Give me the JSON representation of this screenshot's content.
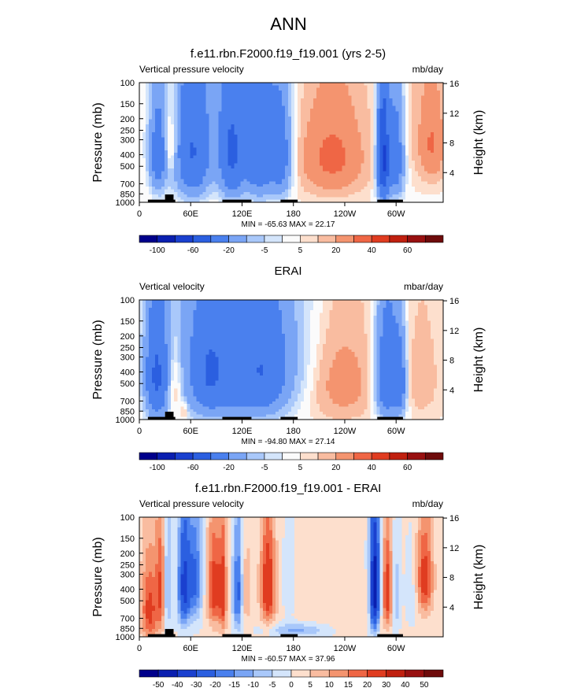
{
  "page_title": "ANN",
  "pressure_ticks": [
    {
      "p": 100,
      "label": "100"
    },
    {
      "p": 150,
      "label": "150"
    },
    {
      "p": 200,
      "label": "200"
    },
    {
      "p": 250,
      "label": "250"
    },
    {
      "p": 300,
      "label": "300"
    },
    {
      "p": 400,
      "label": "400"
    },
    {
      "p": 500,
      "label": "500"
    },
    {
      "p": 700,
      "label": "700"
    },
    {
      "p": 850,
      "label": "850"
    },
    {
      "p": 1000,
      "label": "1000"
    }
  ],
  "height_ticks": [
    {
      "km": 4,
      "label": "4"
    },
    {
      "km": 8,
      "label": "8"
    },
    {
      "km": 12,
      "label": "12"
    },
    {
      "km": 16,
      "label": "16"
    }
  ],
  "lon_ticks": [
    {
      "lon": 0,
      "label": "0"
    },
    {
      "lon": 60,
      "label": "60E"
    },
    {
      "lon": 120,
      "label": "120E"
    },
    {
      "lon": 180,
      "label": "180"
    },
    {
      "lon": 240,
      "label": "120W"
    },
    {
      "lon": 300,
      "label": "60W"
    }
  ],
  "y_label": "Pressure (mb)",
  "y2_label": "Height (km)",
  "topo": [
    {
      "lon0": 10,
      "lon1": 42,
      "pTop": 950
    },
    {
      "lon0": 30,
      "lon1": 40,
      "pTop": 860
    },
    {
      "lon0": 97,
      "lon1": 131,
      "pTop": 950
    },
    {
      "lon0": 165,
      "lon1": 185,
      "pTop": 950
    },
    {
      "lon0": 278,
      "lon1": 308,
      "pTop": 950
    }
  ],
  "chart_data": [
    {
      "type": "contour",
      "id": "p1",
      "title": "f.e11.rbn.F2000.f19_f19.001 (yrs 2-5)",
      "left_label": "Vertical pressure velocity",
      "right_label": "mb/day",
      "min_max": "MIN = -65.63  MAX =  22.17",
      "xlim": [
        0,
        355
      ],
      "ylim": [
        1000,
        100
      ],
      "xlabel": "",
      "ylabel": "Pressure (mb)",
      "y2label": "Height (km)",
      "base": 1.5,
      "features": [
        {
          "lon": 22,
          "p": 420,
          "sx": 7,
          "sp": 260,
          "a": -30
        },
        {
          "lon": 37,
          "p": 330,
          "sx": 5,
          "sp": 160,
          "a": 14
        },
        {
          "lon": 62,
          "p": 400,
          "sx": 14,
          "sp": 330,
          "a": -36
        },
        {
          "lon": 108,
          "p": 400,
          "sx": 10,
          "sp": 330,
          "a": -38
        },
        {
          "lon": 140,
          "p": 380,
          "sx": 12,
          "sp": 330,
          "a": -36
        },
        {
          "lon": 166,
          "p": 420,
          "sx": 9,
          "sp": 300,
          "a": -28
        },
        {
          "lon": 90,
          "p": 250,
          "sx": 50,
          "sp": 300,
          "a": -8
        },
        {
          "lon": 225,
          "p": 420,
          "sx": 26,
          "sp": 260,
          "a": 22
        },
        {
          "lon": 285,
          "p": 440,
          "sx": 5,
          "sp": 330,
          "a": -65
        },
        {
          "lon": 300,
          "p": 420,
          "sx": 7,
          "sp": 300,
          "a": -35
        },
        {
          "lon": 342,
          "p": 330,
          "sx": 10,
          "sp": 200,
          "a": 18
        },
        {
          "lon": 315,
          "p": 250,
          "sx": 20,
          "sp": 260,
          "a": 4
        }
      ],
      "levels": [
        -100,
        -80,
        -60,
        -40,
        -20,
        -10,
        -5,
        -2,
        2,
        5,
        10,
        20,
        30,
        40,
        50,
        60
      ],
      "colors": [
        "#00008b",
        "#0a1fb0",
        "#1a40cf",
        "#2b5fe0",
        "#4a80ee",
        "#7aa5f5",
        "#a9c8fa",
        "#d4e5fb",
        "#fbfbfb",
        "#fddfcd",
        "#f9bca0",
        "#f4946f",
        "#ef6645",
        "#e03c20",
        "#c0200f",
        "#981010",
        "#6e0b0b"
      ],
      "colorbar_labels": [
        {
          "idx": 1,
          "label": "-100"
        },
        {
          "idx": 3,
          "label": "-60"
        },
        {
          "idx": 5,
          "label": "-20"
        },
        {
          "idx": 7,
          "label": "-5"
        },
        {
          "idx": 9,
          "label": "5"
        },
        {
          "idx": 11,
          "label": "20"
        },
        {
          "idx": 13,
          "label": "40"
        },
        {
          "idx": 15,
          "label": "60"
        }
      ]
    },
    {
      "type": "contour",
      "id": "p2",
      "title": "ERAI",
      "left_label": "Vertical velocity",
      "right_label": "mbar/day",
      "min_max": "MIN = -94.80  MAX =  27.14",
      "xlim": [
        0,
        355
      ],
      "ylim": [
        1000,
        100
      ],
      "xlabel": "",
      "ylabel": "Pressure (mb)",
      "y2label": "Height (km)",
      "base": 1.5,
      "features": [
        {
          "lon": 20,
          "p": 450,
          "sx": 9,
          "sp": 330,
          "a": -40
        },
        {
          "lon": 42,
          "p": 500,
          "sx": 6,
          "sp": 260,
          "a": 14
        },
        {
          "lon": 110,
          "p": 400,
          "sx": 45,
          "sp": 380,
          "a": -30
        },
        {
          "lon": 80,
          "p": 450,
          "sx": 10,
          "sp": 260,
          "a": -14
        },
        {
          "lon": 150,
          "p": 450,
          "sx": 14,
          "sp": 260,
          "a": -12
        },
        {
          "lon": 125,
          "p": 220,
          "sx": 60,
          "sp": 350,
          "a": -10
        },
        {
          "lon": 235,
          "p": 480,
          "sx": 28,
          "sp": 320,
          "a": 14
        },
        {
          "lon": 290,
          "p": 450,
          "sx": 10,
          "sp": 330,
          "a": -40
        },
        {
          "lon": 305,
          "p": 500,
          "sx": 5,
          "sp": 260,
          "a": -26
        },
        {
          "lon": 330,
          "p": 450,
          "sx": 14,
          "sp": 300,
          "a": 7
        },
        {
          "lon": 52,
          "p": 850,
          "sx": 3,
          "sp": 100,
          "a": 10
        }
      ],
      "levels": [
        -100,
        -80,
        -60,
        -40,
        -20,
        -10,
        -5,
        -2,
        2,
        5,
        10,
        20,
        30,
        40,
        50,
        60
      ],
      "colors": [
        "#00008b",
        "#0a1fb0",
        "#1a40cf",
        "#2b5fe0",
        "#4a80ee",
        "#7aa5f5",
        "#a9c8fa",
        "#d4e5fb",
        "#fbfbfb",
        "#fddfcd",
        "#f9bca0",
        "#f4946f",
        "#ef6645",
        "#e03c20",
        "#c0200f",
        "#981010",
        "#6e0b0b"
      ],
      "colorbar_labels": [
        {
          "idx": 1,
          "label": "-100"
        },
        {
          "idx": 3,
          "label": "-60"
        },
        {
          "idx": 5,
          "label": "-20"
        },
        {
          "idx": 7,
          "label": "-5"
        },
        {
          "idx": 9,
          "label": "5"
        },
        {
          "idx": 11,
          "label": "20"
        },
        {
          "idx": 13,
          "label": "40"
        },
        {
          "idx": 15,
          "label": "60"
        }
      ]
    },
    {
      "type": "contour",
      "id": "p3",
      "title": "f.e11.rbn.F2000.f19_f19.001 - ERAI",
      "left_label": "Vertical pressure velocity",
      "right_label": "mb/day",
      "min_max": "MIN = -60.57  MAX =  37.96",
      "xlim": [
        0,
        355
      ],
      "ylim": [
        1000,
        100
      ],
      "xlabel": "",
      "ylabel": "Pressure (mb)",
      "y2label": "Height (km)",
      "base": 0.8,
      "features": [
        {
          "lon": 12,
          "p": 600,
          "sx": 7,
          "sp": 330,
          "a": 22
        },
        {
          "lon": 25,
          "p": 400,
          "sx": 4,
          "sp": 300,
          "a": 18
        },
        {
          "lon": 33,
          "p": 400,
          "sx": 3,
          "sp": 300,
          "a": -14
        },
        {
          "lon": 52,
          "p": 380,
          "sx": 5,
          "sp": 260,
          "a": -34
        },
        {
          "lon": 65,
          "p": 330,
          "sx": 6,
          "sp": 240,
          "a": -22
        },
        {
          "lon": 88,
          "p": 400,
          "sx": 6,
          "sp": 260,
          "a": 24
        },
        {
          "lon": 98,
          "p": 450,
          "sx": 3,
          "sp": 300,
          "a": 20
        },
        {
          "lon": 115,
          "p": 430,
          "sx": 4,
          "sp": 280,
          "a": -24
        },
        {
          "lon": 125,
          "p": 430,
          "sx": 4,
          "sp": 260,
          "a": 8
        },
        {
          "lon": 150,
          "p": 380,
          "sx": 6,
          "sp": 260,
          "a": 26
        },
        {
          "lon": 175,
          "p": 380,
          "sx": 6,
          "sp": 200,
          "a": -8
        },
        {
          "lon": 200,
          "p": 420,
          "sx": 30,
          "sp": 240,
          "a": 4
        },
        {
          "lon": 185,
          "p": 880,
          "sx": 25,
          "sp": 80,
          "a": -12
        },
        {
          "lon": 275,
          "p": 400,
          "sx": 4,
          "sp": 300,
          "a": -50
        },
        {
          "lon": 290,
          "p": 420,
          "sx": 4,
          "sp": 260,
          "a": 24
        },
        {
          "lon": 300,
          "p": 480,
          "sx": 3,
          "sp": 260,
          "a": -10
        },
        {
          "lon": 333,
          "p": 330,
          "sx": 7,
          "sp": 200,
          "a": 24
        },
        {
          "lon": 320,
          "p": 420,
          "sx": 6,
          "sp": 220,
          "a": -5
        },
        {
          "lon": 250,
          "p": 700,
          "sx": 20,
          "sp": 200,
          "a": 3
        }
      ],
      "levels": [
        -50,
        -40,
        -30,
        -20,
        -15,
        -10,
        -5,
        0,
        5,
        10,
        15,
        20,
        30,
        40,
        50
      ],
      "colors": [
        "#00008b",
        "#0a1fb0",
        "#1a40cf",
        "#2b5fe0",
        "#4a80ee",
        "#7aa5f5",
        "#a9c8fa",
        "#d4e5fb",
        "#fddfcd",
        "#f9bca0",
        "#f4946f",
        "#ef6645",
        "#e03c20",
        "#c0200f",
        "#981010",
        "#6e0b0b"
      ],
      "colorbar_labels": [
        {
          "idx": 1,
          "label": "-50"
        },
        {
          "idx": 2,
          "label": "-40"
        },
        {
          "idx": 3,
          "label": "-30"
        },
        {
          "idx": 4,
          "label": "-20"
        },
        {
          "idx": 5,
          "label": "-15"
        },
        {
          "idx": 6,
          "label": "-10"
        },
        {
          "idx": 7,
          "label": "-5"
        },
        {
          "idx": 8,
          "label": "0"
        },
        {
          "idx": 9,
          "label": "5"
        },
        {
          "idx": 10,
          "label": "10"
        },
        {
          "idx": 11,
          "label": "15"
        },
        {
          "idx": 12,
          "label": "20"
        },
        {
          "idx": 13,
          "label": "30"
        },
        {
          "idx": 14,
          "label": "40"
        },
        {
          "idx": 15,
          "label": "50"
        }
      ]
    }
  ]
}
